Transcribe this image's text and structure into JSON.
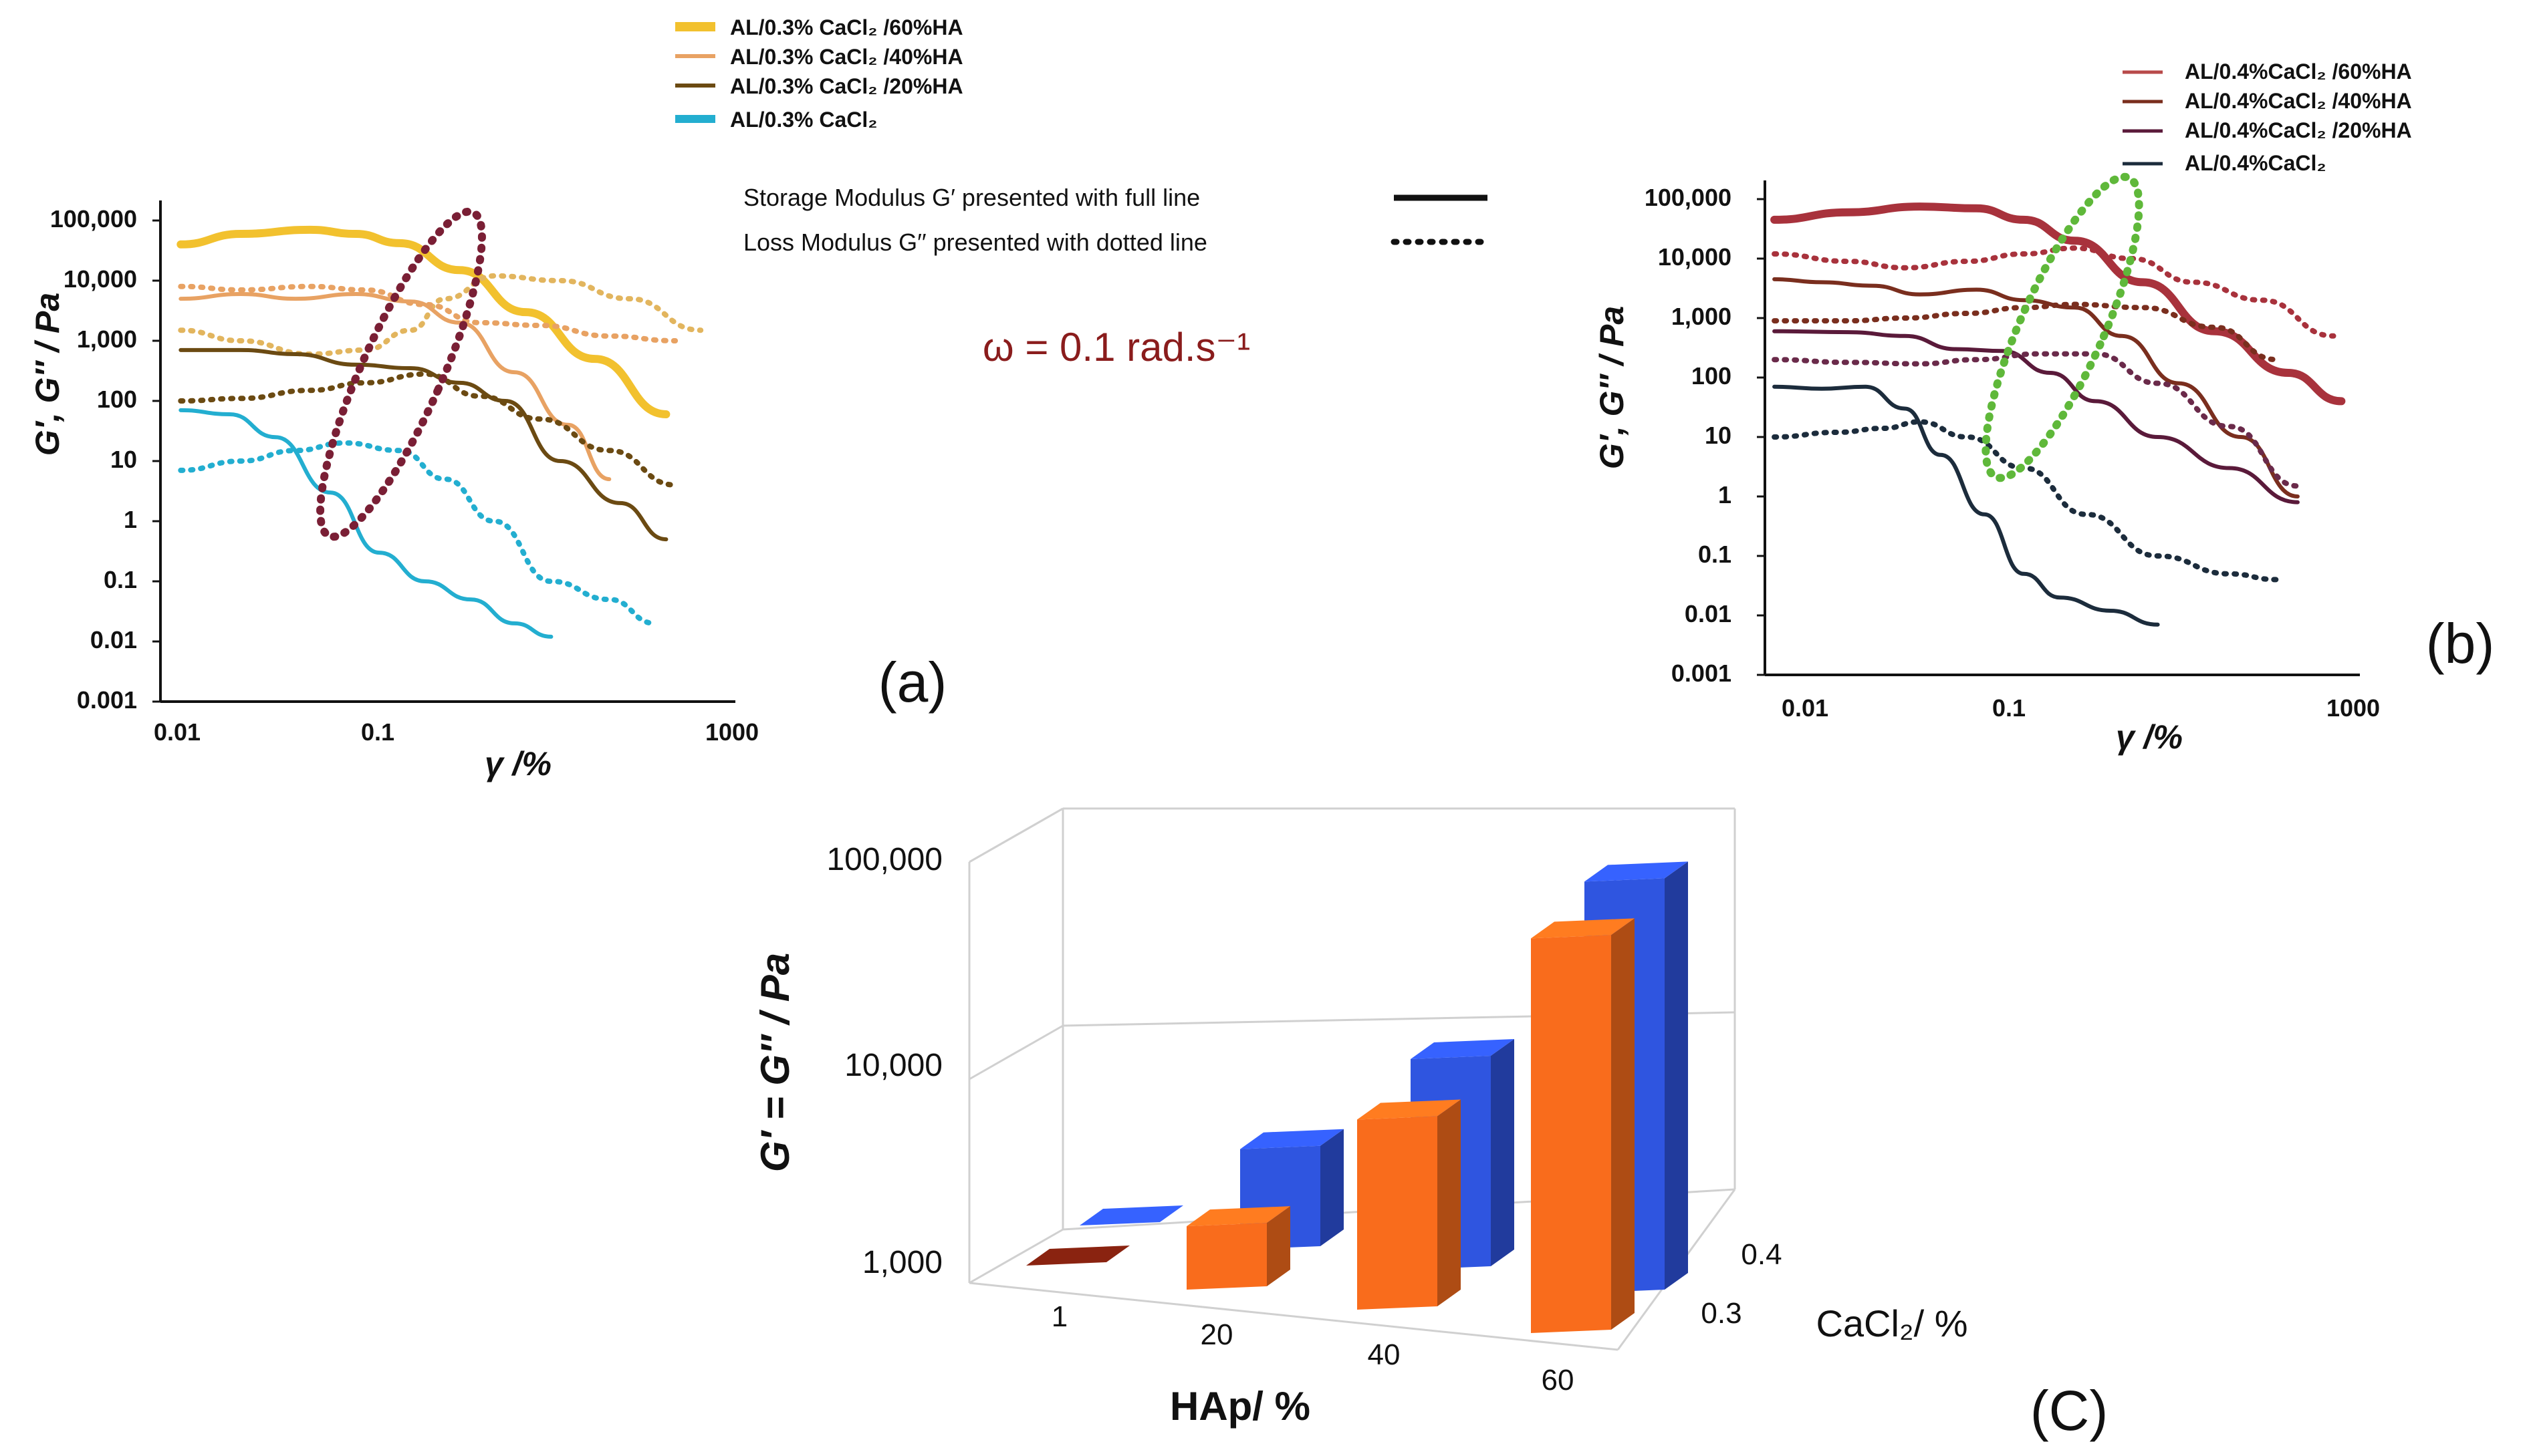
{
  "chart_data": [
    {
      "id": "a",
      "type": "line",
      "panel_label": "(a)",
      "xlabel": "γ /%",
      "ylabel": "G′, G′′ / Pa",
      "xscale": "log",
      "yscale": "log",
      "xlim": [
        0.01,
        1000
      ],
      "ylim": [
        0.001,
        100000
      ],
      "xticks": [
        "0.01",
        "0.1",
        "1000"
      ],
      "yticks": [
        "0.001",
        "0.01",
        "0.1",
        "1",
        "10",
        "100",
        "1,000",
        "10,000",
        "100,000"
      ],
      "legend": [
        {
          "label": "AL/0.3% CaCl₂ /60%HA",
          "color": "#f2c12e"
        },
        {
          "label": "AL/0.3% CaCl₂ /40%HA",
          "color": "#e8a263"
        },
        {
          "label": "AL/0.3% CaCl₂ /20%HA",
          "color": "#6b4a12"
        },
        {
          "label": "AL/0.3% CaCl₂",
          "color": "#23aed0"
        }
      ],
      "series": [
        {
          "name": "60%HA G′",
          "style": "solid",
          "color": "#f2c12e",
          "x": [
            0.015,
            0.05,
            0.2,
            0.5,
            1.2,
            4,
            15,
            60,
            250
          ],
          "y": [
            40000,
            60000,
            70000,
            60000,
            42000,
            15000,
            3000,
            500,
            60
          ]
        },
        {
          "name": "60%HA G′′",
          "style": "dotted",
          "color": "#e2b55e",
          "x": [
            0.015,
            0.05,
            0.2,
            0.6,
            1.5,
            3,
            8,
            30,
            120,
            500
          ],
          "y": [
            1500,
            1000,
            600,
            700,
            1500,
            5000,
            12000,
            10000,
            5000,
            1500
          ]
        },
        {
          "name": "40%HA G′",
          "style": "solid",
          "color": "#e8a263",
          "x": [
            0.015,
            0.05,
            0.15,
            0.5,
            1.5,
            4,
            12,
            35,
            80
          ],
          "y": [
            5000,
            6000,
            5000,
            6000,
            4500,
            2000,
            300,
            40,
            5
          ]
        },
        {
          "name": "40%HA G′′",
          "style": "dotted",
          "color": "#e8a263",
          "x": [
            0.015,
            0.05,
            0.2,
            0.6,
            2,
            6,
            20,
            80,
            300
          ],
          "y": [
            8000,
            7000,
            8000,
            7000,
            4000,
            2000,
            1800,
            1200,
            1000
          ]
        },
        {
          "name": "20%HA G′",
          "style": "solid",
          "color": "#6b4a12",
          "x": [
            0.015,
            0.05,
            0.15,
            0.5,
            1.5,
            4,
            10,
            30,
            100,
            250
          ],
          "y": [
            700,
            700,
            600,
            400,
            350,
            200,
            100,
            10,
            2,
            0.5
          ]
        },
        {
          "name": "20%HA G′′",
          "style": "dotted",
          "color": "#6b4a12",
          "x": [
            0.015,
            0.05,
            0.2,
            0.6,
            2,
            6,
            20,
            80,
            300
          ],
          "y": [
            100,
            110,
            150,
            200,
            280,
            120,
            50,
            15,
            4
          ]
        },
        {
          "name": "0%HA G′",
          "style": "solid",
          "color": "#23aed0",
          "x": [
            0.015,
            0.04,
            0.1,
            0.3,
            0.8,
            2,
            5,
            12,
            25
          ],
          "y": [
            70,
            60,
            25,
            3,
            0.3,
            0.1,
            0.05,
            0.02,
            0.012
          ]
        },
        {
          "name": "0%HA G′′",
          "style": "dotted",
          "color": "#23aed0",
          "x": [
            0.015,
            0.05,
            0.15,
            0.4,
            1.2,
            3,
            8,
            25,
            80,
            200
          ],
          "y": [
            7,
            10,
            15,
            20,
            15,
            5,
            1,
            0.1,
            0.05,
            0.02
          ]
        }
      ],
      "annotation_color": "#7a1f35"
    },
    {
      "id": "b",
      "type": "line",
      "panel_label": "(b)",
      "xlabel": "γ /%",
      "ylabel": "G′, G′′ / Pa",
      "xscale": "log",
      "yscale": "log",
      "xlim": [
        0.01,
        1000
      ],
      "ylim": [
        0.001,
        100000
      ],
      "xticks": [
        "0.01",
        "0.1",
        "1000"
      ],
      "yticks": [
        "0.001",
        "0.01",
        "0.1",
        "1",
        "10",
        "100",
        "1,000",
        "10,000",
        "100,000"
      ],
      "legend": [
        {
          "label": "AL/0.4%CaCl₂ /60%HA",
          "color": "#b84a4a"
        },
        {
          "label": "AL/0.4%CaCl₂ /40%HA",
          "color": "#7a2e1e"
        },
        {
          "label": "AL/0.4%CaCl₂ /20%HA",
          "color": "#5a1a3a"
        },
        {
          "label": "AL/0.4%CaCl₂",
          "color": "#1c2c3c"
        }
      ],
      "series": [
        {
          "name": "60%HA G′",
          "style": "solid",
          "color": "#a8323c",
          "x": [
            0.012,
            0.05,
            0.2,
            0.6,
            1.5,
            4,
            15,
            60,
            250,
            700
          ],
          "y": [
            45000,
            60000,
            75000,
            70000,
            45000,
            20000,
            4000,
            600,
            120,
            40
          ]
        },
        {
          "name": "60%HA G′′",
          "style": "dotted",
          "color": "#a8323c",
          "x": [
            0.012,
            0.05,
            0.15,
            0.5,
            1.5,
            4,
            12,
            40,
            150,
            600
          ],
          "y": [
            12000,
            9000,
            7000,
            9000,
            12000,
            15000,
            10000,
            4000,
            2000,
            500
          ]
        },
        {
          "name": "40%HA G′",
          "style": "solid",
          "color": "#7a2e1e",
          "x": [
            0.012,
            0.03,
            0.08,
            0.2,
            0.6,
            1.5,
            4,
            10,
            30,
            100,
            300
          ],
          "y": [
            4500,
            4000,
            3500,
            2500,
            3000,
            2000,
            1500,
            500,
            80,
            10,
            1
          ]
        },
        {
          "name": "40%HA G′′",
          "style": "dotted",
          "color": "#7a2e1e",
          "x": [
            0.012,
            0.05,
            0.15,
            0.5,
            1.5,
            4,
            15,
            60,
            200
          ],
          "y": [
            900,
            900,
            1000,
            1200,
            1500,
            1700,
            1500,
            700,
            200
          ]
        },
        {
          "name": "20%HA G′",
          "style": "solid",
          "color": "#5a1a3a",
          "x": [
            0.012,
            0.05,
            0.15,
            0.4,
            1,
            2.5,
            6,
            20,
            80,
            300
          ],
          "y": [
            600,
            580,
            500,
            300,
            280,
            120,
            40,
            10,
            3,
            0.8
          ]
        },
        {
          "name": "20%HA G′′",
          "style": "dotted",
          "color": "#6a2a4a",
          "x": [
            0.012,
            0.05,
            0.2,
            0.6,
            2,
            6,
            20,
            80,
            300
          ],
          "y": [
            200,
            180,
            170,
            200,
            250,
            250,
            80,
            15,
            1.5
          ]
        },
        {
          "name": "0%HA G′",
          "style": "solid",
          "color": "#1c2c3c",
          "x": [
            0.012,
            0.03,
            0.07,
            0.15,
            0.3,
            0.7,
            1.5,
            3,
            8,
            20
          ],
          "y": [
            70,
            65,
            70,
            30,
            5,
            0.5,
            0.05,
            0.02,
            0.012,
            0.007
          ]
        },
        {
          "name": "0%HA G′′",
          "style": "dotted",
          "color": "#1c2c3c",
          "x": [
            0.012,
            0.04,
            0.1,
            0.2,
            0.5,
            1.5,
            5,
            20,
            80,
            200
          ],
          "y": [
            10,
            12,
            14,
            18,
            10,
            3,
            0.5,
            0.1,
            0.05,
            0.04
          ]
        }
      ],
      "annotation_color": "#5fb83a"
    },
    {
      "id": "c",
      "type": "bar",
      "panel_label": "(C)",
      "bar_style": "3d",
      "ylabel": "G′ = G′′ / Pa",
      "xlabel": "HAp/ %",
      "zlabel": "CaCl₂/ %",
      "yscale": "log",
      "ylim": [
        1000,
        100000
      ],
      "yticks": [
        "1,000",
        "10,000",
        "100,000"
      ],
      "categories": [
        "1",
        "20",
        "40",
        "60"
      ],
      "depth_categories": [
        "0.3",
        "0.4"
      ],
      "series": [
        {
          "name": "0.3",
          "color": "#f96c1c",
          "values": [
            1000,
            2000,
            8000,
            75000
          ]
        },
        {
          "name": "0.4",
          "color": "#2f55e0",
          "values": [
            1000,
            3000,
            10000,
            90000
          ]
        }
      ]
    }
  ],
  "legend_notes": {
    "storage": "Storage Modulus G′ presented with full line",
    "loss": "Loss Modulus G′′ presented with  dotted line"
  },
  "omega": "ω = 0.1 rad.s⁻¹",
  "colors": {
    "omega_text": "#8a1c1c",
    "axis": "#111111",
    "grid_3d": "#d0d0d0"
  }
}
